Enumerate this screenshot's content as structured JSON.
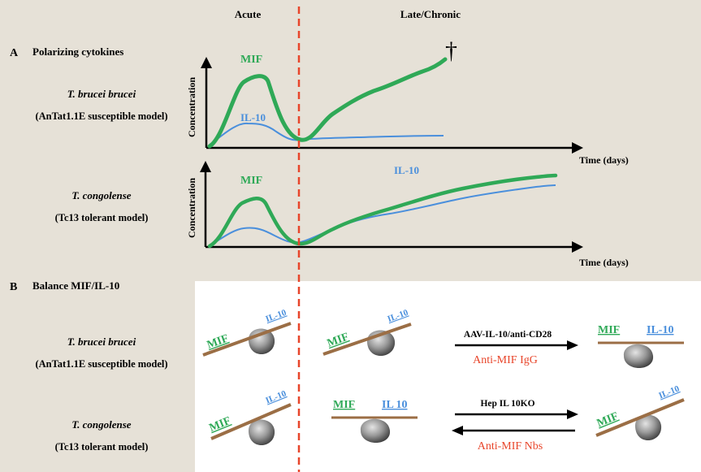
{
  "phases": {
    "acute": "Acute",
    "chronic": "Late/Chronic"
  },
  "panel_a": {
    "letter": "A",
    "title": "Polarizing cytokines",
    "rows": [
      {
        "species": "T. brucei brucei",
        "model": "(AnTat1.1E  susceptible model)",
        "y_label": "Concentration",
        "x_label": "Time (days)",
        "mif_label": "MIF",
        "il10_label": "IL-10",
        "death_marker": "†"
      },
      {
        "species": "T. congolense",
        "model": "(Tc13 tolerant model)",
        "y_label": "Concentration",
        "x_label": "Time (days)",
        "mif_label": "MIF",
        "il10_label": "IL-10"
      }
    ]
  },
  "panel_b": {
    "letter": "B",
    "title": "Balance MIF/IL-10",
    "rows": [
      {
        "species": "T. brucei brucei",
        "model": "(AnTat1.1E  susceptible model)",
        "acute": {
          "left": "MIF",
          "right": "IL-10",
          "tilt": "mif-heavy"
        },
        "chronic": {
          "left": "MIF",
          "right": "IL-10",
          "tilt": "mif-heavy"
        },
        "arrow_top": "AAV-IL-10/anti-CD28",
        "arrow_bottom": "Anti-MIF  IgG",
        "outcome": {
          "left": "MIF",
          "right": "IL-10",
          "tilt": "balanced"
        }
      },
      {
        "species": "T. congolense",
        "model": "(Tc13 tolerant model)",
        "acute": {
          "left": "MIF",
          "right": "IL-10",
          "tilt": "mif-heavy"
        },
        "chronic": {
          "left": "MIF",
          "right": "IL 10",
          "tilt": "balanced"
        },
        "arrow_top": "Hep IL 10KO",
        "arrow_bottom": "Anti-MIF  Nbs",
        "outcome": {
          "left": "MIF",
          "right": "IL-10",
          "tilt": "mif-heavy"
        }
      }
    ]
  },
  "colors": {
    "mif": "#2fa957",
    "il10": "#4a8fdc",
    "divider": "#e8452a",
    "beam": "#9b6e45",
    "panel_b_bg": "#ffffff",
    "bg": "#e6e1d7",
    "red_text": "#e8452a"
  }
}
